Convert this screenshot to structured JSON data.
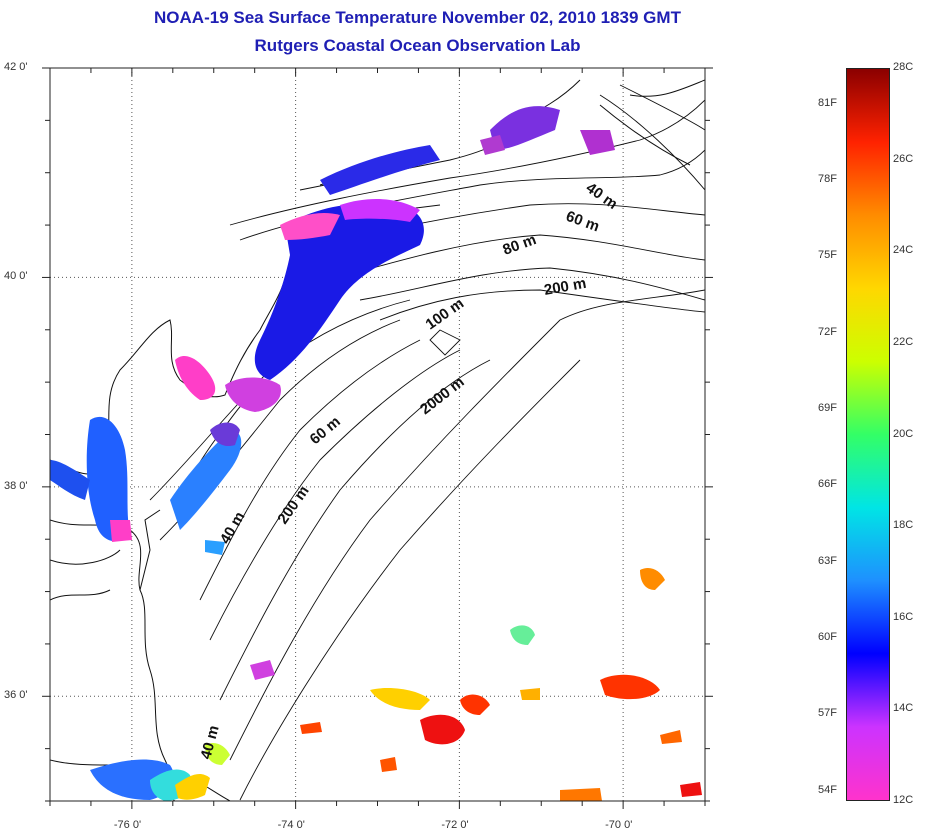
{
  "title": {
    "line1": "NOAA-19 Sea Surface Temperature November 02, 2010 1839 GMT",
    "line2": "Rutgers Coastal Ocean Observation Lab"
  },
  "map": {
    "lat_labels": [
      {
        "text": "42 0'",
        "lat": 42
      },
      {
        "text": "40 0'",
        "lat": 40
      },
      {
        "text": "38 0'",
        "lat": 38
      },
      {
        "text": "36 0'",
        "lat": 36
      }
    ],
    "lon_labels": [
      {
        "text": "-76 0'",
        "lon": -76
      },
      {
        "text": "-74 0'",
        "lon": -74
      },
      {
        "text": "-72 0'",
        "lon": -72
      },
      {
        "text": "-70 0'",
        "lon": -70
      }
    ],
    "extent": {
      "lon_min": -77.0,
      "lon_max": -69.0,
      "lat_min": 35.0,
      "lat_max": 42.0
    },
    "depth_labels": [
      "40 m",
      "60 m",
      "80 m",
      "200 m",
      "100 m",
      "2000 m",
      "60 m",
      "200 m",
      "40 m",
      "40 m"
    ]
  },
  "colorbar": {
    "fahrenheit_labels": [
      "81F",
      "78F",
      "75F",
      "72F",
      "69F",
      "66F",
      "63F",
      "60F",
      "57F",
      "54F"
    ],
    "celsius_labels": [
      "28C",
      "26C",
      "24C",
      "22C",
      "20C",
      "18C",
      "16C",
      "14C",
      "12C"
    ],
    "range_c": [
      12,
      28
    ],
    "colors": [
      "#ff33cc",
      "#cc33ff",
      "#0000ff",
      "#1e90ff",
      "#00e5e5",
      "#33ff66",
      "#ccff00",
      "#ffd700",
      "#ff8c00",
      "#ff2200",
      "#8b0000"
    ]
  }
}
